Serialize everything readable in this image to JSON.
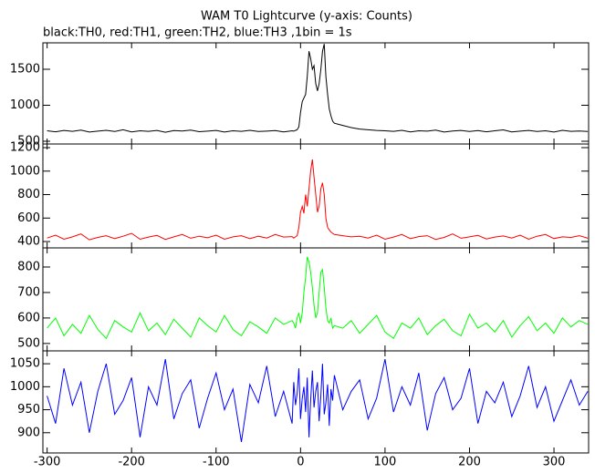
{
  "chart_data": {
    "type": "line",
    "title": "WAM T0 Lightcurve (y-axis: Counts)",
    "subtitle": "black:TH0, red:TH1, green:TH2, blue:TH3 ,1bin = 1s",
    "xlim": [
      -305,
      341
    ],
    "xticks": [
      -300,
      -200,
      -100,
      0,
      100,
      200,
      300
    ],
    "x": [
      -300,
      -290,
      -280,
      -270,
      -260,
      -250,
      -240,
      -230,
      -220,
      -210,
      -200,
      -190,
      -180,
      -170,
      -160,
      -150,
      -140,
      -130,
      -120,
      -110,
      -100,
      -90,
      -80,
      -70,
      -60,
      -50,
      -40,
      -30,
      -20,
      -10,
      -8,
      -6,
      -4,
      -2,
      0,
      2,
      4,
      6,
      8,
      10,
      12,
      14,
      16,
      18,
      20,
      22,
      24,
      26,
      28,
      30,
      32,
      34,
      36,
      38,
      40,
      50,
      60,
      70,
      80,
      90,
      100,
      110,
      120,
      130,
      140,
      150,
      160,
      170,
      180,
      190,
      200,
      210,
      220,
      230,
      240,
      250,
      260,
      270,
      280,
      290,
      300,
      310,
      320,
      330,
      340
    ],
    "panels": [
      {
        "color": "#000000",
        "ylim": [
          462,
          1867
        ],
        "yticks": [
          500,
          1000,
          1500
        ],
        "values": [
          645,
          632,
          650,
          638,
          655,
          628,
          640,
          652,
          635,
          660,
          630,
          645,
          638,
          650,
          625,
          648,
          642,
          655,
          633,
          640,
          650,
          628,
          645,
          638,
          652,
          635,
          640,
          648,
          630,
          645,
          640,
          650,
          660,
          700,
          900,
          1050,
          1100,
          1150,
          1400,
          1750,
          1650,
          1500,
          1550,
          1300,
          1200,
          1300,
          1500,
          1750,
          1850,
          1400,
          1150,
          950,
          850,
          780,
          750,
          720,
          690,
          670,
          660,
          650,
          645,
          638,
          652,
          630,
          645,
          640,
          655,
          628,
          642,
          650,
          636,
          648,
          632,
          645,
          658,
          630,
          640,
          650,
          635,
          645,
          628,
          652,
          638,
          642,
          636
        ]
      },
      {
        "color": "#ff0000",
        "ylim": [
          346,
          1231
        ],
        "yticks": [
          400,
          600,
          800,
          1000,
          1200
        ],
        "values": [
          430,
          455,
          420,
          440,
          465,
          415,
          435,
          450,
          425,
          445,
          470,
          420,
          438,
          452,
          418,
          440,
          460,
          428,
          445,
          432,
          455,
          420,
          440,
          450,
          425,
          445,
          430,
          460,
          438,
          442,
          430,
          440,
          450,
          520,
          650,
          700,
          640,
          800,
          700,
          850,
          1000,
          1100,
          950,
          800,
          650,
          700,
          850,
          900,
          800,
          600,
          520,
          500,
          480,
          470,
          460,
          450,
          440,
          445,
          430,
          455,
          420,
          438,
          460,
          425,
          442,
          450,
          418,
          435,
          465,
          428,
          440,
          452,
          422,
          438,
          448,
          430,
          455,
          420,
          445,
          460,
          425,
          440,
          435,
          450,
          428
        ]
      },
      {
        "color": "#00ff00",
        "ylim": [
          471,
          875
        ],
        "yticks": [
          500,
          600,
          700,
          800
        ],
        "values": [
          560,
          600,
          530,
          575,
          540,
          610,
          555,
          520,
          590,
          565,
          545,
          620,
          550,
          580,
          535,
          595,
          560,
          525,
          600,
          570,
          545,
          610,
          555,
          530,
          585,
          565,
          540,
          600,
          575,
          590,
          580,
          560,
          600,
          620,
          580,
          620,
          700,
          760,
          840,
          820,
          780,
          720,
          650,
          600,
          620,
          700,
          780,
          790,
          720,
          640,
          590,
          580,
          600,
          560,
          570,
          560,
          590,
          540,
          575,
          610,
          545,
          520,
          580,
          560,
          600,
          535,
          570,
          595,
          550,
          530,
          615,
          560,
          580,
          545,
          590,
          525,
          570,
          605,
          550,
          580,
          540,
          600,
          565,
          590,
          575
        ]
      },
      {
        "color": "#0000ff",
        "ylim": [
          856,
          1078
        ],
        "yticks": [
          900,
          950,
          1000,
          1050
        ],
        "values": [
          980,
          920,
          1040,
          960,
          1010,
          900,
          990,
          1050,
          940,
          970,
          1020,
          890,
          1000,
          960,
          1060,
          930,
          985,
          1015,
          910,
          975,
          1030,
          950,
          995,
          880,
          1005,
          965,
          1045,
          935,
          990,
          920,
          1010,
          960,
          985,
          1040,
          930,
          975,
          1000,
          945,
          1020,
          890,
          970,
          1035,
          955,
          990,
          1010,
          925,
          980,
          1050,
          940,
          965,
          1005,
          915,
          995,
          970,
          1025,
          950,
          990,
          1015,
          930,
          975,
          1060,
          945,
          1000,
          960,
          1030,
          905,
          985,
          1020,
          950,
          975,
          1040,
          920,
          990,
          965,
          1010,
          935,
          980,
          1045,
          955,
          1000,
          925,
          970,
          1015,
          960,
          990
        ]
      }
    ]
  }
}
